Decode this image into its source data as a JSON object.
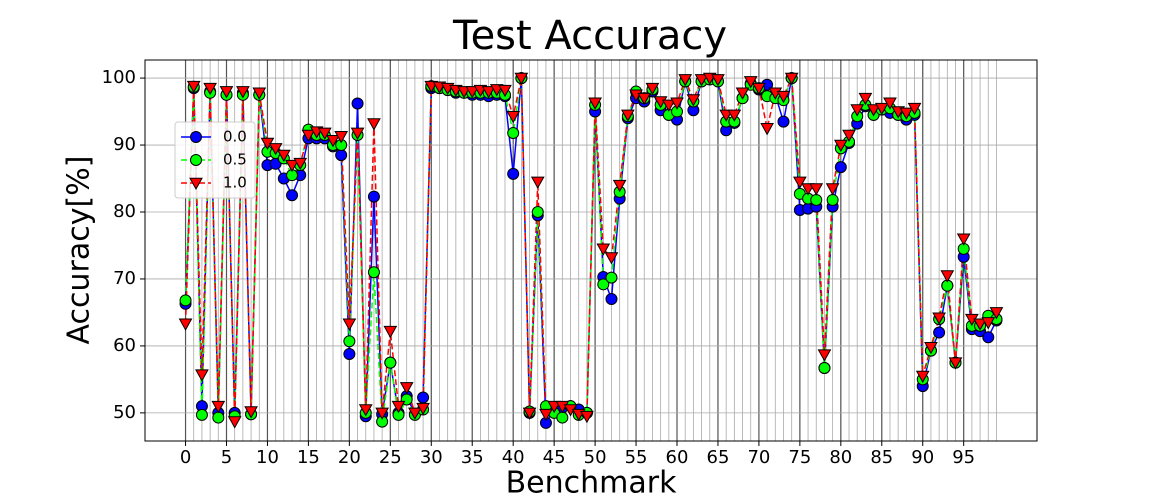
{
  "chart_data": {
    "type": "line",
    "title": "Test Accuracy",
    "xlabel": "Benchmark",
    "ylabel": "Accuracy[%]",
    "x": [
      0,
      1,
      2,
      3,
      4,
      5,
      6,
      7,
      8,
      9,
      10,
      11,
      12,
      13,
      14,
      15,
      16,
      17,
      18,
      19,
      20,
      21,
      22,
      23,
      24,
      25,
      26,
      27,
      28,
      29,
      30,
      31,
      32,
      33,
      34,
      35,
      36,
      37,
      38,
      39,
      40,
      41,
      42,
      43,
      44,
      45,
      46,
      47,
      48,
      49,
      50,
      51,
      52,
      53,
      54,
      55,
      56,
      57,
      58,
      59,
      60,
      61,
      62,
      63,
      64,
      65,
      66,
      67,
      68,
      69,
      70,
      71,
      72,
      73,
      74,
      75,
      76,
      77,
      78,
      79,
      80,
      81,
      82,
      83,
      84,
      85,
      86,
      87,
      88,
      89,
      90,
      91,
      92,
      93,
      94,
      95,
      96,
      97,
      98,
      99
    ],
    "series": [
      {
        "name": "0.0",
        "color": "#0000ff",
        "linestyle": "solid",
        "marker": "circle",
        "values": [
          66.3,
          98.5,
          51.0,
          98.0,
          50.0,
          97.5,
          50.0,
          97.8,
          49.8,
          97.5,
          87.0,
          87.2,
          85.0,
          82.5,
          85.5,
          91.0,
          91.0,
          91.0,
          89.8,
          88.5,
          58.8,
          96.2,
          49.5,
          82.3,
          49.8,
          57.5,
          50.0,
          52.5,
          49.8,
          52.3,
          98.5,
          98.5,
          98.3,
          97.8,
          97.8,
          97.5,
          97.5,
          97.3,
          97.5,
          97.3,
          85.7,
          100,
          50.0,
          79.5,
          48.5,
          50.5,
          50.8,
          51.0,
          50.5,
          50.0,
          95.0,
          70.3,
          67.0,
          82.0,
          94.0,
          97.0,
          96.5,
          98.0,
          95.2,
          94.5,
          93.8,
          99.5,
          95.2,
          99.5,
          99.8,
          99.5,
          92.2,
          93.3,
          97.0,
          99.2,
          98.3,
          99.0,
          97.5,
          93.5,
          100,
          80.3,
          80.5,
          80.8,
          56.7,
          80.8,
          86.7,
          90.3,
          93.2,
          95.8,
          94.5,
          95.3,
          94.8,
          94.5,
          93.8,
          94.5,
          54.0,
          59.3,
          62.0,
          69.0,
          57.5,
          73.3,
          62.5,
          62.2,
          61.3,
          63.8
        ]
      },
      {
        "name": "0.5",
        "color": "#00ff00",
        "linestyle": "dashed",
        "marker": "circle",
        "values": [
          66.8,
          98.7,
          49.7,
          97.8,
          49.3,
          97.5,
          49.5,
          97.5,
          49.8,
          97.5,
          89.0,
          88.8,
          88.0,
          85.5,
          87.0,
          92.3,
          91.5,
          91.5,
          90.0,
          90.0,
          60.7,
          91.5,
          50.0,
          71.0,
          48.7,
          57.5,
          49.7,
          52.0,
          49.7,
          50.5,
          98.8,
          98.5,
          98.2,
          98.0,
          97.8,
          97.8,
          97.8,
          97.8,
          97.8,
          97.5,
          91.8,
          100,
          50.2,
          80.0,
          51.0,
          50.0,
          49.3,
          51.0,
          49.7,
          50.0,
          96.0,
          69.2,
          70.2,
          83.0,
          94.3,
          98.0,
          97.0,
          98.3,
          96.0,
          94.5,
          95.0,
          99.5,
          96.5,
          99.5,
          99.8,
          99.5,
          93.5,
          93.5,
          97.0,
          99.0,
          98.5,
          97.3,
          97.0,
          96.7,
          100,
          82.7,
          82.0,
          81.8,
          56.7,
          81.8,
          89.5,
          90.5,
          94.3,
          96.0,
          94.5,
          95.3,
          95.5,
          94.5,
          94.3,
          94.8,
          55.0,
          59.3,
          64.0,
          69.0,
          57.5,
          74.5,
          63.0,
          63.0,
          64.5,
          64.0
        ]
      },
      {
        "name": "1.0",
        "color": "#ff0000",
        "linestyle": "dashed",
        "marker": "triangle-down",
        "values": [
          63.3,
          98.8,
          55.7,
          98.5,
          51.0,
          98.0,
          48.7,
          98.0,
          50.2,
          97.8,
          90.3,
          89.5,
          88.5,
          87.0,
          87.3,
          91.5,
          92.0,
          91.8,
          90.7,
          91.3,
          63.3,
          91.8,
          50.5,
          93.2,
          50.0,
          62.2,
          51.0,
          53.8,
          50.0,
          50.7,
          98.8,
          98.7,
          98.5,
          98.2,
          98.0,
          98.0,
          98.2,
          98.0,
          98.3,
          98.2,
          94.3,
          100,
          50.0,
          84.5,
          49.8,
          51.0,
          51.0,
          50.5,
          49.8,
          49.5,
          96.3,
          74.5,
          73.2,
          84.0,
          94.5,
          97.5,
          97.0,
          98.5,
          96.5,
          96.0,
          96.3,
          99.8,
          96.8,
          99.8,
          100,
          99.8,
          94.5,
          94.5,
          97.8,
          99.5,
          98.5,
          92.5,
          97.8,
          97.3,
          100,
          84.5,
          83.5,
          83.5,
          58.7,
          83.5,
          90.0,
          91.5,
          95.3,
          97.0,
          95.3,
          95.5,
          96.3,
          95.0,
          94.8,
          95.5,
          55.5,
          59.8,
          64.2,
          70.5,
          57.5,
          76.0,
          64.0,
          63.3,
          63.5,
          65.0
        ]
      }
    ],
    "xlim": [
      -4.95,
      103.95
    ],
    "ylim": [
      45.8,
      102.7
    ],
    "xticks": [
      0,
      5,
      10,
      15,
      20,
      25,
      30,
      35,
      40,
      45,
      50,
      55,
      60,
      65,
      70,
      75,
      80,
      85,
      90,
      95
    ],
    "yticks": [
      50,
      60,
      70,
      80,
      90,
      100
    ],
    "grid": true,
    "minor_grid": true,
    "legend": "upper left"
  }
}
